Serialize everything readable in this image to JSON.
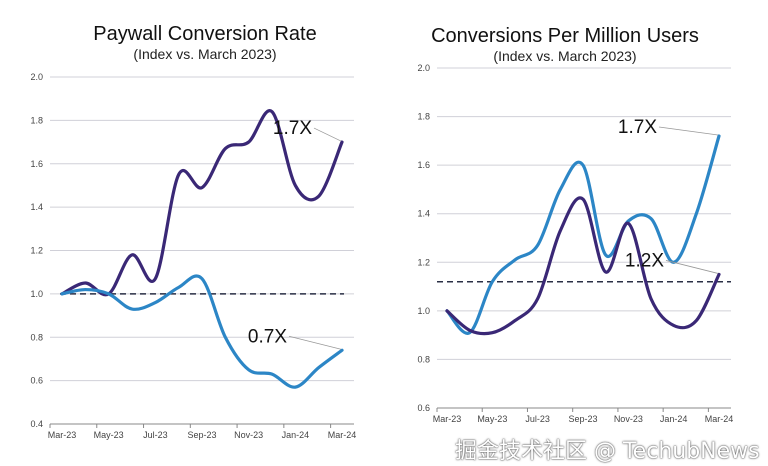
{
  "colors": {
    "purple": "#3a2876",
    "blue": "#2c86c6",
    "grid": "#d0d0d8",
    "dash": "#2a2f45"
  },
  "chart_data": [
    {
      "type": "line",
      "title": "Paywall Conversion Rate",
      "subtitle": "(Index vs. March 2023)",
      "categories": [
        "Mar-23",
        "Apr-23",
        "May-23",
        "Jun-23",
        "Jul-23",
        "Aug-23",
        "Sep-23",
        "Oct-23",
        "Nov-23",
        "Dec-23",
        "Jan-24",
        "Feb-24",
        "Mar-24"
      ],
      "tick_labels": [
        "Mar-23",
        "May-23",
        "Jul-23",
        "Sep-23",
        "Nov-23",
        "Jan-24",
        "Mar-24"
      ],
      "yticks": [
        "0.4",
        "0.6",
        "0.8",
        "1.0",
        "1.2",
        "1.4",
        "1.6",
        "1.8",
        "2.0"
      ],
      "ylim": [
        0.4,
        2.0
      ],
      "grid": true,
      "reference_line": 1.0,
      "series": [
        {
          "color": "purple",
          "values": [
            1.0,
            1.05,
            1.0,
            1.18,
            1.07,
            1.55,
            1.49,
            1.67,
            1.7,
            1.84,
            1.5,
            1.45,
            1.7
          ],
          "end_label": "1.7X"
        },
        {
          "color": "blue",
          "values": [
            1.0,
            1.02,
            1.0,
            0.93,
            0.96,
            1.03,
            1.07,
            0.8,
            0.65,
            0.63,
            0.57,
            0.66,
            0.74
          ],
          "end_label": "0.7X"
        }
      ]
    },
    {
      "type": "line",
      "title": "Conversions Per Million Users",
      "subtitle": "(Index vs. March 2023)",
      "categories": [
        "Mar-23",
        "Apr-23",
        "May-23",
        "Jun-23",
        "Jul-23",
        "Aug-23",
        "Sep-23",
        "Oct-23",
        "Nov-23",
        "Dec-23",
        "Jan-24",
        "Feb-24",
        "Mar-24"
      ],
      "tick_labels": [
        "Mar-23",
        "May-23",
        "Jul-23",
        "Sep-23",
        "Nov-23",
        "Jan-24",
        "Mar-24"
      ],
      "yticks": [
        "0.6",
        "0.8",
        "1.0",
        "1.2",
        "1.4",
        "1.6",
        "1.8",
        "2.0"
      ],
      "ylim": [
        0.6,
        2.0
      ],
      "grid": true,
      "reference_line": 1.12,
      "series": [
        {
          "color": "blue",
          "values": [
            1.0,
            0.91,
            1.12,
            1.21,
            1.27,
            1.5,
            1.6,
            1.23,
            1.37,
            1.38,
            1.2,
            1.4,
            1.72
          ],
          "end_label": "1.7X"
        },
        {
          "color": "purple",
          "values": [
            1.0,
            0.92,
            0.91,
            0.96,
            1.05,
            1.33,
            1.46,
            1.16,
            1.36,
            1.05,
            0.94,
            0.96,
            1.15
          ],
          "end_label": "1.2X"
        }
      ]
    }
  ],
  "watermark": "掘金技术社区 @ TechubNews"
}
